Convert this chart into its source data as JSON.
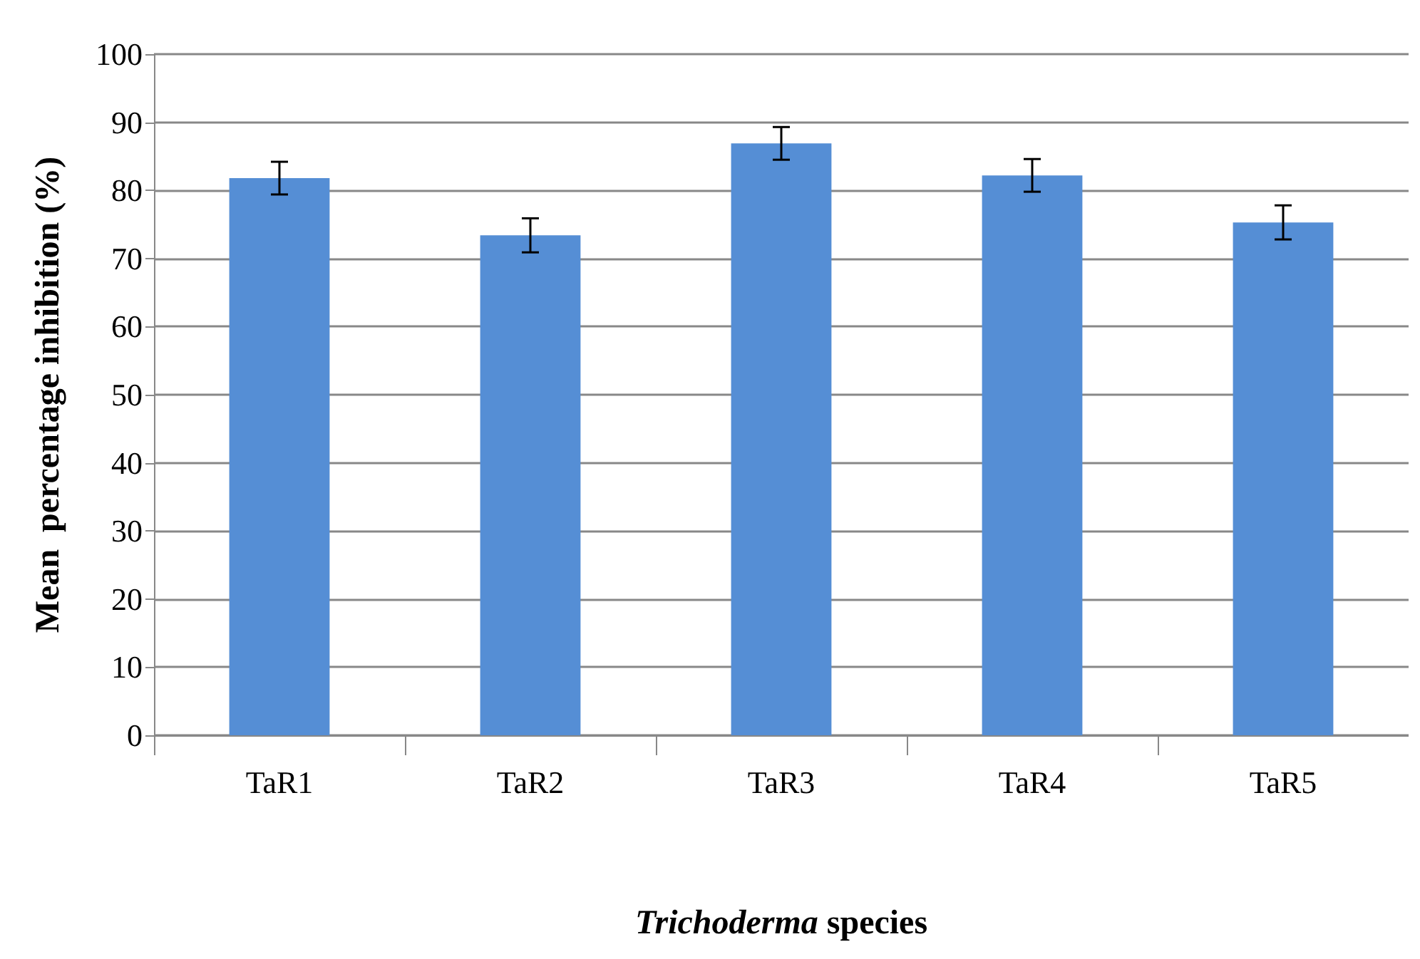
{
  "chart_data": {
    "type": "bar",
    "xlabel": "Trichoderma species",
    "ylabel": "Mean  percentage inhibition (%)",
    "categories": [
      "TaR1",
      "TaR2",
      "TaR3",
      "TaR4",
      "TaR5"
    ],
    "values": [
      81.8,
      73.4,
      86.9,
      82.2,
      75.3
    ],
    "errors": [
      2.4,
      2.5,
      2.4,
      2.4,
      2.5
    ],
    "color": "#558ed5",
    "ylim": [
      0,
      100
    ],
    "yticks": [
      0,
      10,
      20,
      30,
      40,
      50,
      60,
      70,
      80,
      90,
      100
    ],
    "grid": "y"
  }
}
